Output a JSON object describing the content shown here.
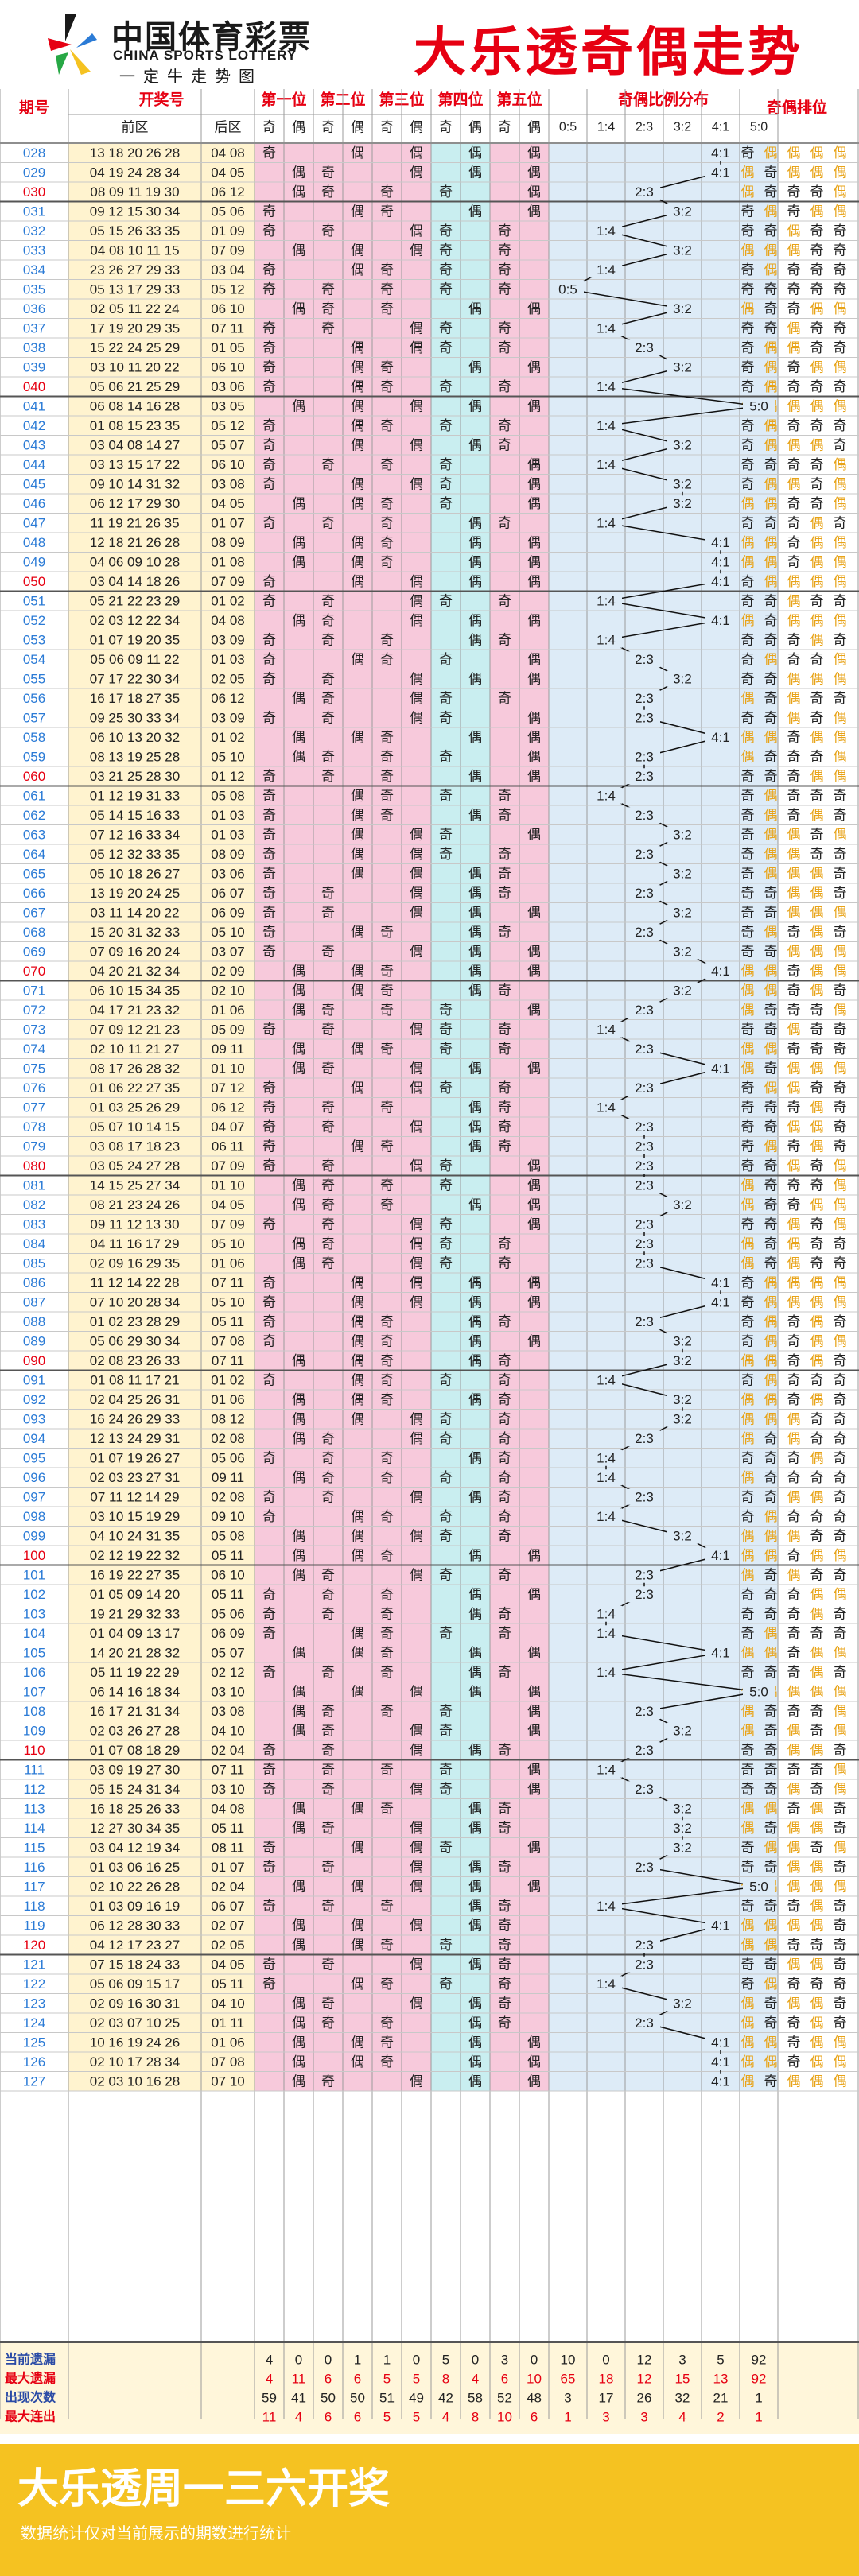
{
  "header": {
    "logo_cn": "中国体育彩票",
    "logo_en": "CHINA SPORTS LOTTERY",
    "logo_slogan": "一定牛走势图",
    "title": "大乐透奇偶走势"
  },
  "table": {
    "col_issue": "期号",
    "col_draw": "开奖号",
    "sub_front": "前区",
    "sub_back": "后区",
    "positions": [
      "第一位",
      "第二位",
      "第三位",
      "第四位",
      "第五位"
    ],
    "odd_label": "奇",
    "even_label": "偶",
    "ratio_header": "奇偶比例分布",
    "ratios": [
      "0:5",
      "1:4",
      "2:3",
      "3:2",
      "4:1",
      "5:0"
    ],
    "order_header": "奇偶排位"
  },
  "colors": {
    "brand_yellow": "#F5C221",
    "title_red": "#E60012",
    "odd_red": "#E60012",
    "even_orange": "#E8A317",
    "issue_blue": "#2B7BD6",
    "pos1_bg": "#F7C9DB",
    "pos2_bg": "#F7C9DB",
    "pos3_bg": "#F7C9DB",
    "pos4_bg": "#C9EEF0",
    "pos5_bg": "#F7C9DB",
    "ratio_bg": "#DDEBF7",
    "draw_bg": "#FFF3CF"
  },
  "chart_data": {
    "type": "table",
    "rows": [
      {
        "issue": "028",
        "front": "13 18 20 26 28",
        "back": "04 08"
      },
      {
        "issue": "029",
        "front": "04 19 24 28 34",
        "back": "04 05"
      },
      {
        "issue": "030",
        "front": "08 09 11 19 30",
        "back": "06 12"
      },
      {
        "issue": "031",
        "front": "09 12 15 30 34",
        "back": "05 06"
      },
      {
        "issue": "032",
        "front": "05 15 26 33 35",
        "back": "01 09"
      },
      {
        "issue": "033",
        "front": "04 08 10 11 15",
        "back": "07 09"
      },
      {
        "issue": "034",
        "front": "23 26 27 29 33",
        "back": "03 04"
      },
      {
        "issue": "035",
        "front": "05 13 17 29 33",
        "back": "05 12"
      },
      {
        "issue": "036",
        "front": "02 05 11 22 24",
        "back": "06 10"
      },
      {
        "issue": "037",
        "front": "17 19 20 29 35",
        "back": "07 11"
      },
      {
        "issue": "038",
        "front": "15 22 24 25 29",
        "back": "01 05"
      },
      {
        "issue": "039",
        "front": "03 10 11 20 22",
        "back": "06 10"
      },
      {
        "issue": "040",
        "front": "05 06 21 25 29",
        "back": "03 06"
      },
      {
        "issue": "041",
        "front": "06 08 14 16 28",
        "back": "03 05"
      },
      {
        "issue": "042",
        "front": "01 08 15 23 35",
        "back": "05 12"
      },
      {
        "issue": "043",
        "front": "03 04 08 14 27",
        "back": "05 07"
      },
      {
        "issue": "044",
        "front": "03 13 15 17 22",
        "back": "06 10"
      },
      {
        "issue": "045",
        "front": "09 10 14 31 32",
        "back": "03 08"
      },
      {
        "issue": "046",
        "front": "06 12 17 29 30",
        "back": "04 05"
      },
      {
        "issue": "047",
        "front": "11 19 21 26 35",
        "back": "01 07"
      },
      {
        "issue": "048",
        "front": "12 18 21 26 28",
        "back": "08 09"
      },
      {
        "issue": "049",
        "front": "04 06 09 10 28",
        "back": "01 08"
      },
      {
        "issue": "050",
        "front": "03 04 14 18 26",
        "back": "07 09"
      },
      {
        "issue": "051",
        "front": "05 21 22 23 29",
        "back": "01 02"
      },
      {
        "issue": "052",
        "front": "02 03 12 22 34",
        "back": "04 08"
      },
      {
        "issue": "053",
        "front": "01 07 19 20 35",
        "back": "03 09"
      },
      {
        "issue": "054",
        "front": "05 06 09 11 22",
        "back": "01 03"
      },
      {
        "issue": "055",
        "front": "07 17 22 30 34",
        "back": "02 05"
      },
      {
        "issue": "056",
        "front": "16 17 18 27 35",
        "back": "06 12"
      },
      {
        "issue": "057",
        "front": "09 25 30 33 34",
        "back": "03 09"
      },
      {
        "issue": "058",
        "front": "06 10 13 20 32",
        "back": "01 02"
      },
      {
        "issue": "059",
        "front": "08 13 19 25 28",
        "back": "05 10"
      },
      {
        "issue": "060",
        "front": "03 21 25 28 30",
        "back": "01 12"
      },
      {
        "issue": "061",
        "front": "01 12 19 31 33",
        "back": "05 08"
      },
      {
        "issue": "062",
        "front": "05 14 15 16 33",
        "back": "01 03"
      },
      {
        "issue": "063",
        "front": "07 12 16 33 34",
        "back": "01 03"
      },
      {
        "issue": "064",
        "front": "05 12 32 33 35",
        "back": "08 09"
      },
      {
        "issue": "065",
        "front": "05 10 18 26 27",
        "back": "03 06"
      },
      {
        "issue": "066",
        "front": "13 19 20 24 25",
        "back": "06 07"
      },
      {
        "issue": "067",
        "front": "03 11 14 20 22",
        "back": "06 09"
      },
      {
        "issue": "068",
        "front": "15 20 31 32 33",
        "back": "05 10"
      },
      {
        "issue": "069",
        "front": "07 09 16 20 24",
        "back": "03 07"
      },
      {
        "issue": "070",
        "front": "04 20 21 32 34",
        "back": "02 09"
      },
      {
        "issue": "071",
        "front": "06 10 15 34 35",
        "back": "02 10"
      },
      {
        "issue": "072",
        "front": "04 17 21 23 32",
        "back": "01 06"
      },
      {
        "issue": "073",
        "front": "07 09 12 21 23",
        "back": "05 09"
      },
      {
        "issue": "074",
        "front": "02 10 11 21 27",
        "back": "09 11"
      },
      {
        "issue": "075",
        "front": "08 17 26 28 32",
        "back": "01 10"
      },
      {
        "issue": "076",
        "front": "01 06 22 27 35",
        "back": "07 12"
      },
      {
        "issue": "077",
        "front": "01 03 25 26 29",
        "back": "06 12"
      },
      {
        "issue": "078",
        "front": "05 07 10 14 15",
        "back": "04 07"
      },
      {
        "issue": "079",
        "front": "03 08 17 18 23",
        "back": "06 11"
      },
      {
        "issue": "080",
        "front": "03 05 24 27 28",
        "back": "07 09"
      },
      {
        "issue": "081",
        "front": "14 15 25 27 34",
        "back": "01 10"
      },
      {
        "issue": "082",
        "front": "08 21 23 24 26",
        "back": "04 05"
      },
      {
        "issue": "083",
        "front": "09 11 12 13 30",
        "back": "07 09"
      },
      {
        "issue": "084",
        "front": "04 11 16 17 29",
        "back": "05 10"
      },
      {
        "issue": "085",
        "front": "02 09 16 29 35",
        "back": "01 06"
      },
      {
        "issue": "086",
        "front": "11 12 14 22 28",
        "back": "07 11"
      },
      {
        "issue": "087",
        "front": "07 10 20 28 34",
        "back": "05 10"
      },
      {
        "issue": "088",
        "front": "01 02 23 28 29",
        "back": "05 11"
      },
      {
        "issue": "089",
        "front": "05 06 29 30 34",
        "back": "07 08"
      },
      {
        "issue": "090",
        "front": "02 08 23 26 33",
        "back": "07 11"
      },
      {
        "issue": "091",
        "front": "01 08 11 17 21",
        "back": "01 02"
      },
      {
        "issue": "092",
        "front": "02 04 25 26 31",
        "back": "01 06"
      },
      {
        "issue": "093",
        "front": "16 24 26 29 33",
        "back": "08 12"
      },
      {
        "issue": "094",
        "front": "12 13 24 29 31",
        "back": "02 08"
      },
      {
        "issue": "095",
        "front": "01 07 19 26 27",
        "back": "05 06"
      },
      {
        "issue": "096",
        "front": "02 03 23 27 31",
        "back": "09 11"
      },
      {
        "issue": "097",
        "front": "07 11 12 14 29",
        "back": "02 08"
      },
      {
        "issue": "098",
        "front": "03 10 15 19 29",
        "back": "09 10"
      },
      {
        "issue": "099",
        "front": "04 10 24 31 35",
        "back": "05 08"
      },
      {
        "issue": "100",
        "front": "02 12 19 22 32",
        "back": "05 11"
      },
      {
        "issue": "101",
        "front": "16 19 22 27 35",
        "back": "06 10"
      },
      {
        "issue": "102",
        "front": "01 05 09 14 20",
        "back": "05 11"
      },
      {
        "issue": "103",
        "front": "19 21 29 32 33",
        "back": "05 06"
      },
      {
        "issue": "104",
        "front": "01 04 09 13 17",
        "back": "06 09"
      },
      {
        "issue": "105",
        "front": "14 20 21 28 32",
        "back": "05 07"
      },
      {
        "issue": "106",
        "front": "05 11 19 22 29",
        "back": "02 12"
      },
      {
        "issue": "107",
        "front": "06 14 16 18 34",
        "back": "03 10"
      },
      {
        "issue": "108",
        "front": "16 17 21 31 34",
        "back": "03 08"
      },
      {
        "issue": "109",
        "front": "02 03 26 27 28",
        "back": "04 10"
      },
      {
        "issue": "110",
        "front": "01 07 08 18 29",
        "back": "02 04"
      },
      {
        "issue": "111",
        "front": "03 09 19 27 30",
        "back": "07 11"
      },
      {
        "issue": "112",
        "front": "05 15 24 31 34",
        "back": "03 10"
      },
      {
        "issue": "113",
        "front": "16 18 25 26 33",
        "back": "04 08"
      },
      {
        "issue": "114",
        "front": "12 27 30 34 35",
        "back": "05 11"
      },
      {
        "issue": "115",
        "front": "03 04 12 19 34",
        "back": "08 11"
      },
      {
        "issue": "116",
        "front": "01 03 06 16 25",
        "back": "01 07"
      },
      {
        "issue": "117",
        "front": "02 10 22 26 28",
        "back": "02 04"
      },
      {
        "issue": "118",
        "front": "01 03 09 16 19",
        "back": "06 07"
      },
      {
        "issue": "119",
        "front": "06 12 28 30 33",
        "back": "02 07"
      },
      {
        "issue": "120",
        "front": "04 12 17 23 27",
        "back": "02 05"
      },
      {
        "issue": "121",
        "front": "07 15 18 24 33",
        "back": "04 05"
      },
      {
        "issue": "122",
        "front": "05 06 09 15 17",
        "back": "05 11"
      },
      {
        "issue": "123",
        "front": "02 09 16 30 31",
        "back": "04 10"
      },
      {
        "issue": "124",
        "front": "02 03 07 10 25",
        "back": "01 11"
      },
      {
        "issue": "125",
        "front": "10 16 19 24 26",
        "back": "01 06"
      },
      {
        "issue": "126",
        "front": "02 10 17 28 34",
        "back": "07 08"
      },
      {
        "issue": "127",
        "front": "02 03 10 16 28",
        "back": "07 10"
      }
    ],
    "stats": [
      {
        "label": "当前遗漏",
        "odd_even": [
          4,
          0,
          0,
          1,
          1,
          0,
          5,
          0,
          3,
          0
        ],
        "ratio": [
          10,
          0,
          12,
          3,
          5,
          92
        ]
      },
      {
        "label": "最大遗漏",
        "odd_even": [
          4,
          11,
          6,
          6,
          5,
          5,
          8,
          4,
          6,
          10
        ],
        "ratio": [
          65,
          18,
          12,
          15,
          13,
          92
        ]
      },
      {
        "label": "出现次数",
        "odd_even": [
          59,
          41,
          50,
          50,
          51,
          49,
          42,
          58,
          52,
          48
        ],
        "ratio": [
          3,
          17,
          26,
          32,
          21,
          1
        ]
      },
      {
        "label": "最大连出",
        "odd_even": [
          11,
          4,
          6,
          6,
          5,
          5,
          4,
          8,
          10,
          6
        ],
        "ratio": [
          1,
          3,
          3,
          4,
          2,
          1
        ]
      }
    ]
  },
  "footer": {
    "title": "大乐透周一三六开奖",
    "note": "数据统计仅对当前展示的期数进行统计"
  }
}
